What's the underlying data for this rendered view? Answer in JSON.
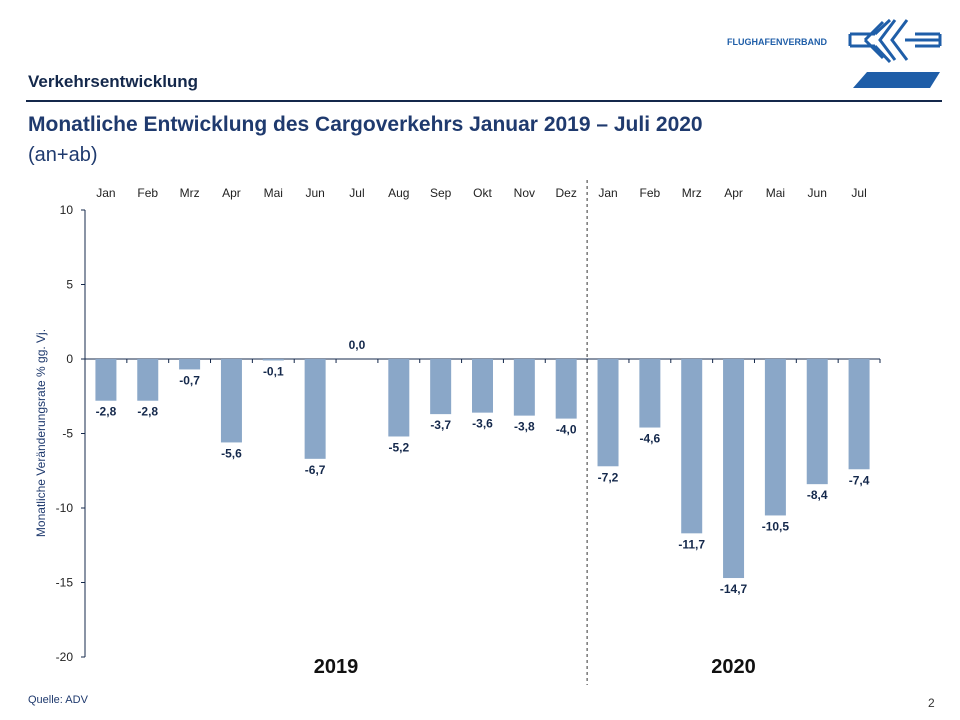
{
  "header": {
    "section": "Verkehrsentwicklung",
    "title": "Monatliche Entwicklung des Cargoverkehrs Januar 2019 – Juli 2020",
    "subtitle": "(an+ab)",
    "logo_text": "FLUGHAFENVERBAND",
    "logo_mark": "ADV"
  },
  "footer": {
    "source": "Quelle: ADV",
    "page": "2"
  },
  "colors": {
    "bar": "#8aa7c8",
    "text": "#1f3a6e",
    "axis": "#14284b"
  },
  "chart_data": {
    "type": "bar",
    "categories": [
      "Jan",
      "Feb",
      "Mrz",
      "Apr",
      "Mai",
      "Jun",
      "Jul",
      "Aug",
      "Sep",
      "Okt",
      "Nov",
      "Dez",
      "Jan",
      "Feb",
      "Mrz",
      "Apr",
      "Mai",
      "Jun",
      "Jul"
    ],
    "values": [
      -2.8,
      -2.8,
      -0.7,
      -5.6,
      -0.1,
      -6.7,
      0.0,
      -5.2,
      -3.7,
      -3.6,
      -3.8,
      -4.0,
      -7.2,
      -4.6,
      -11.7,
      -14.7,
      -10.5,
      -8.4,
      -7.4
    ],
    "labels": [
      "-2,8",
      "-2,8",
      "-0,7",
      "-5,6",
      "-0,1",
      "-6,7",
      "0,0",
      "-5,2",
      "-3,7",
      "-3,6",
      "-3,8",
      "-4,0",
      "-7,2",
      "-4,6",
      "-11,7",
      "-14,7",
      "-10,5",
      "-8,4",
      "-7,4"
    ],
    "groups": [
      "2019",
      "2020"
    ],
    "ylabel": "Monatliche Veränderungsrate % gg. Vj.",
    "ylim": [
      -20,
      10
    ],
    "yticks": [
      "10",
      "5",
      "0",
      "-5",
      "-10",
      "-15",
      "-20"
    ],
    "grid": false,
    "xaxis_position": "top"
  }
}
